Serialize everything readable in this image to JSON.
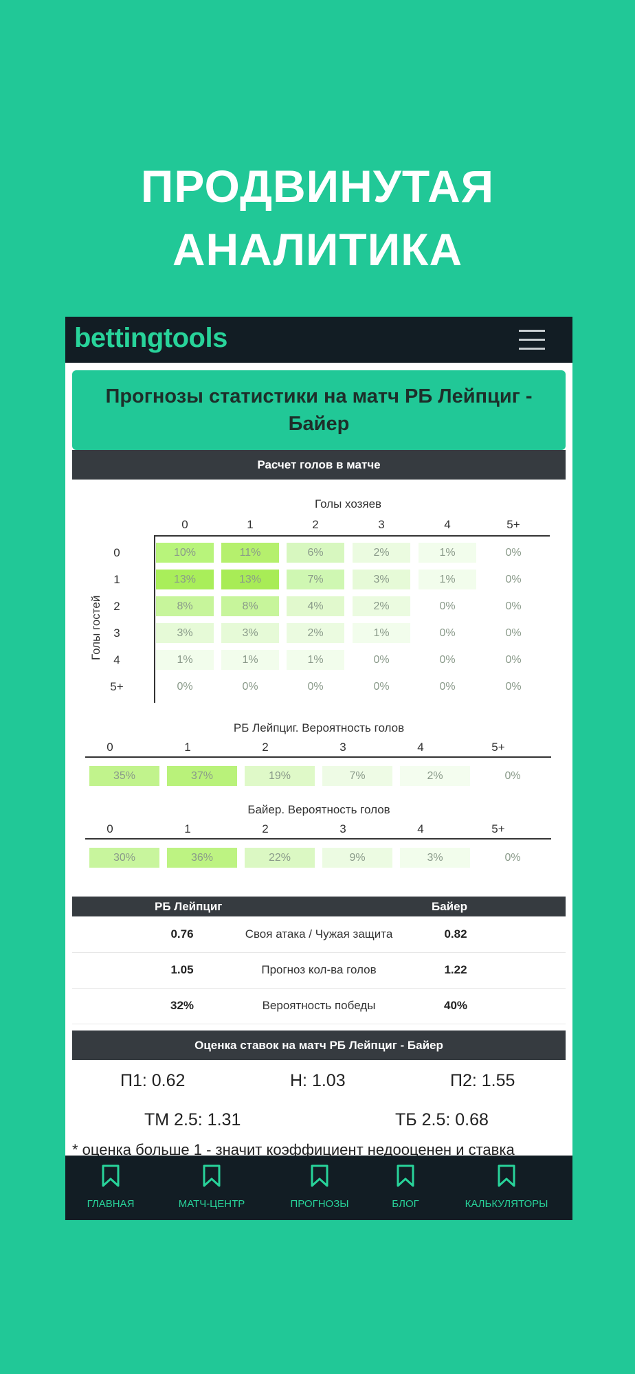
{
  "promo": {
    "line1": "ПРОДВИНУТАЯ",
    "line2": "АНАЛИТИКА"
  },
  "app": {
    "brand": "bettingtools"
  },
  "header": {
    "title": "Прогнозы статистики на матч РБ Лейпциг - Байер"
  },
  "goals_section": {
    "title": "Расчет голов в матче"
  },
  "matrix": {
    "x_title": "Голы хозяев",
    "y_title": "Голы гостей",
    "cols": [
      "0",
      "1",
      "2",
      "3",
      "4",
      "5+"
    ],
    "rows": [
      "0",
      "1",
      "2",
      "3",
      "4",
      "5+"
    ],
    "cells": [
      [
        "10%",
        "11%",
        "6%",
        "2%",
        "1%",
        "0%"
      ],
      [
        "13%",
        "13%",
        "7%",
        "3%",
        "1%",
        "0%"
      ],
      [
        "8%",
        "8%",
        "4%",
        "2%",
        "0%",
        "0%"
      ],
      [
        "3%",
        "3%",
        "2%",
        "1%",
        "0%",
        "0%"
      ],
      [
        "1%",
        "1%",
        "1%",
        "0%",
        "0%",
        "0%"
      ],
      [
        "0%",
        "0%",
        "0%",
        "0%",
        "0%",
        "0%"
      ]
    ],
    "cell_colors": [
      [
        "#b8f47b",
        "#b5f06d",
        "#d7f7bf",
        "#ebfbe0",
        "#f2fdec",
        "#ffffff"
      ],
      [
        "#a9ee5a",
        "#a8ec56",
        "#cff7b2",
        "#e6fad7",
        "#f2fdec",
        "#ffffff"
      ],
      [
        "#c7f59b",
        "#c7f59b",
        "#e1f9cd",
        "#ebfbe0",
        "#ffffff",
        "#ffffff"
      ],
      [
        "#e6fad7",
        "#e6fad7",
        "#ebfbe0",
        "#f2fdec",
        "#ffffff",
        "#ffffff"
      ],
      [
        "#f2fdec",
        "#f2fdec",
        "#f2fdec",
        "#ffffff",
        "#ffffff",
        "#ffffff"
      ],
      [
        "#ffffff",
        "#ffffff",
        "#ffffff",
        "#ffffff",
        "#ffffff",
        "#ffffff"
      ]
    ]
  },
  "home_dist": {
    "title": "РБ Лейпциг. Вероятность голов",
    "cols": [
      "0",
      "1",
      "2",
      "3",
      "4",
      "5+"
    ],
    "values": [
      "35%",
      "37%",
      "19%",
      "7%",
      "2%",
      "0%"
    ],
    "colors": [
      "#c1f38c",
      "#b9f27a",
      "#dff9c8",
      "#eefbe5",
      "#f4fdef",
      "#ffffff"
    ]
  },
  "away_dist": {
    "title": "Байер. Вероятность голов",
    "cols": [
      "0",
      "1",
      "2",
      "3",
      "4",
      "5+"
    ],
    "values": [
      "30%",
      "36%",
      "22%",
      "9%",
      "3%",
      "0%"
    ],
    "colors": [
      "#c8f59d",
      "#bdf382",
      "#dbf8c3",
      "#ecfbe2",
      "#f2fdec",
      "#ffffff"
    ]
  },
  "comparison": {
    "home": "РБ Лейпциг",
    "away": "Байер",
    "rows": [
      {
        "home": "0.76",
        "label": "Своя атака / Чужая защита",
        "away": "0.82"
      },
      {
        "home": "1.05",
        "label": "Прогноз кол-ва голов",
        "away": "1.22"
      },
      {
        "home": "32%",
        "label": "Вероятность победы",
        "away": "40%"
      }
    ]
  },
  "bets_section": {
    "title": "Оценка ставок на матч РБ Лейпциг - Байер"
  },
  "bets": {
    "p1": "П1: 0.62",
    "n": "Н: 1.03",
    "p2": "П2: 1.55",
    "tm": "ТМ 2.5: 1.31",
    "tb": "ТБ 2.5: 0.68",
    "note": "* оценка больше 1 - значит коэффициент недооценен и ставка"
  },
  "nav": {
    "items": [
      {
        "label": "ГЛАВНАЯ",
        "icon": "bookmark-icon"
      },
      {
        "label": "МАТЧ-ЦЕНТР",
        "icon": "bookmark-icon"
      },
      {
        "label": "ПРОГНОЗЫ",
        "icon": "bookmark-icon"
      },
      {
        "label": "БЛОГ",
        "icon": "bookmark-icon"
      },
      {
        "label": "КАЛЬКУЛЯТОРЫ",
        "icon": "bookmark-icon"
      }
    ]
  }
}
